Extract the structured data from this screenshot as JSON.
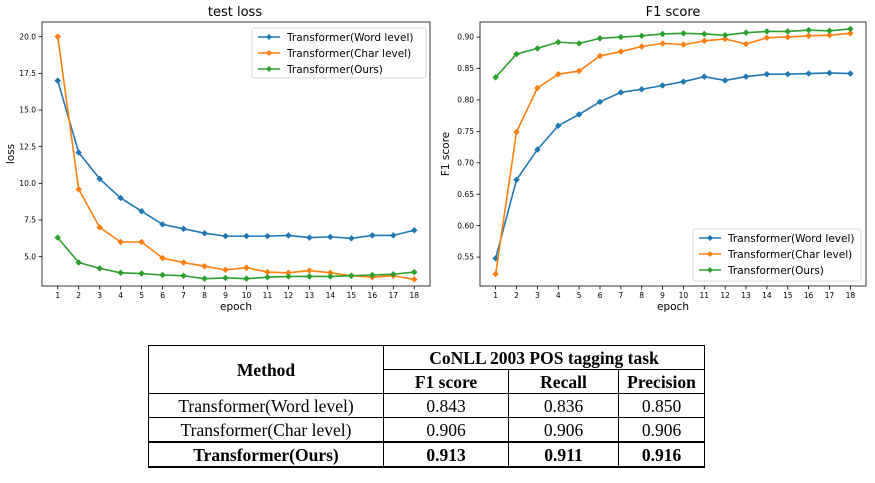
{
  "colors": {
    "word": "#1f77b4",
    "char": "#ff7f0e",
    "ours": "#2ca02c"
  },
  "chart_data": [
    {
      "type": "line",
      "title": "test loss",
      "xlabel": "epoch",
      "ylabel": "loss",
      "xlim": [
        0.25,
        18.75
      ],
      "ylim": [
        3.0,
        21.0
      ],
      "xticks": [
        "1",
        "2",
        "3",
        "4",
        "5",
        "6",
        "7",
        "8",
        "9",
        "10",
        "11",
        "12",
        "13",
        "14",
        "15",
        "16",
        "17",
        "18"
      ],
      "yticks": [
        "5.0",
        "7.5",
        "10.0",
        "12.5",
        "15.0",
        "17.5",
        "20.0"
      ],
      "grid": false,
      "legend": "top-right",
      "x": [
        1,
        2,
        3,
        4,
        5,
        6,
        7,
        8,
        9,
        10,
        11,
        12,
        13,
        14,
        15,
        16,
        17,
        18
      ],
      "series": [
        {
          "name": "Transformer(Word level)",
          "values": [
            17.0,
            12.1,
            10.3,
            9.0,
            8.1,
            7.2,
            6.9,
            6.6,
            6.4,
            6.4,
            6.4,
            6.45,
            6.3,
            6.35,
            6.25,
            6.45,
            6.45,
            6.8
          ]
        },
        {
          "name": "Transformer(Char level)",
          "values": [
            20.0,
            9.6,
            7.0,
            6.0,
            6.0,
            4.9,
            4.6,
            4.35,
            4.1,
            4.25,
            3.95,
            3.9,
            4.05,
            3.9,
            3.7,
            3.6,
            3.7,
            3.45
          ]
        },
        {
          "name": "Transformer(Ours)",
          "values": [
            6.3,
            4.6,
            4.2,
            3.9,
            3.85,
            3.75,
            3.7,
            3.5,
            3.55,
            3.5,
            3.6,
            3.65,
            3.65,
            3.65,
            3.7,
            3.75,
            3.8,
            3.95
          ]
        }
      ]
    },
    {
      "type": "line",
      "title": "F1 score",
      "xlabel": "epoch",
      "ylabel": "F1 score",
      "xlim": [
        0.25,
        18.75
      ],
      "ylim": [
        0.504,
        0.924
      ],
      "xticks": [
        "1",
        "2",
        "3",
        "4",
        "5",
        "6",
        "7",
        "8",
        "9",
        "10",
        "11",
        "12",
        "13",
        "14",
        "15",
        "16",
        "17",
        "18"
      ],
      "yticks": [
        "0.55",
        "0.60",
        "0.65",
        "0.70",
        "0.75",
        "0.80",
        "0.85",
        "0.90"
      ],
      "grid": false,
      "legend": "bottom-right",
      "x": [
        1,
        2,
        3,
        4,
        5,
        6,
        7,
        8,
        9,
        10,
        11,
        12,
        13,
        14,
        15,
        16,
        17,
        18
      ],
      "series": [
        {
          "name": "Transformer(Word level)",
          "values": [
            0.548,
            0.673,
            0.721,
            0.759,
            0.777,
            0.797,
            0.812,
            0.817,
            0.823,
            0.829,
            0.837,
            0.831,
            0.837,
            0.841,
            0.841,
            0.842,
            0.843,
            0.842
          ]
        },
        {
          "name": "Transformer(Char level)",
          "values": [
            0.523,
            0.749,
            0.819,
            0.841,
            0.846,
            0.87,
            0.877,
            0.885,
            0.89,
            0.888,
            0.894,
            0.897,
            0.889,
            0.899,
            0.9,
            0.902,
            0.903,
            0.906
          ]
        },
        {
          "name": "Transformer(Ours)",
          "values": [
            0.836,
            0.873,
            0.882,
            0.892,
            0.89,
            0.898,
            0.9,
            0.902,
            0.905,
            0.906,
            0.905,
            0.903,
            0.907,
            0.909,
            0.909,
            0.911,
            0.91,
            0.913
          ]
        }
      ]
    }
  ],
  "table": {
    "method_header": "Method",
    "group_header": "CoNLL 2003 POS tagging task",
    "columns": [
      "F1 score",
      "Recall",
      "Precision"
    ],
    "rows": [
      {
        "method": "Transformer(Word level)",
        "f1": "0.843",
        "recall": "0.836",
        "precision": "0.850"
      },
      {
        "method": "Transformer(Char level)",
        "f1": "0.906",
        "recall": "0.906",
        "precision": "0.906"
      },
      {
        "method": "Transformer(Ours)",
        "f1": "0.913",
        "recall": "0.911",
        "precision": "0.916"
      }
    ]
  }
}
